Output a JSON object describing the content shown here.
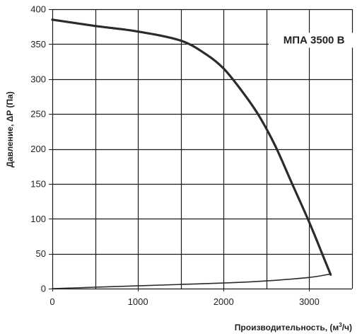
{
  "chart_data": {
    "type": "line",
    "xlabel": "Производительность, (м³/ч)",
    "xlabel_parts": {
      "before": "Производительность, (м",
      "sup": "3",
      "after": "/ч)"
    },
    "ylabel": "Давление, ΔP (Па)",
    "xlim": [
      0,
      3500
    ],
    "ylim": [
      0,
      400
    ],
    "x_ticks": [
      0,
      1000,
      2000,
      3000
    ],
    "y_ticks": [
      0,
      50,
      100,
      150,
      200,
      250,
      300,
      350,
      400
    ],
    "x_ticks_labels": [
      "0",
      "1000",
      "2000",
      "3000"
    ],
    "y_ticks_labels": [
      "0",
      "50",
      "100",
      "150",
      "200",
      "250",
      "300",
      "350",
      "400"
    ],
    "x_grid_step": 500,
    "y_grid_step": 50,
    "grid": true,
    "annotation": "МПА 3500 В",
    "series": [
      {
        "role": "fan-curve",
        "points": [
          [
            0,
            385
          ],
          [
            500,
            376
          ],
          [
            1000,
            368
          ],
          [
            1500,
            355
          ],
          [
            1800,
            335
          ],
          [
            2000,
            315
          ],
          [
            2200,
            285
          ],
          [
            2400,
            250
          ],
          [
            2600,
            205
          ],
          [
            2800,
            150
          ],
          [
            3000,
            95
          ],
          [
            3150,
            50
          ],
          [
            3250,
            20
          ]
        ]
      },
      {
        "role": "system-curve",
        "points": [
          [
            0,
            0
          ],
          [
            500,
            2
          ],
          [
            1000,
            4
          ],
          [
            1500,
            6
          ],
          [
            2000,
            8
          ],
          [
            2500,
            11
          ],
          [
            3000,
            16
          ],
          [
            3250,
            21
          ]
        ]
      }
    ]
  }
}
